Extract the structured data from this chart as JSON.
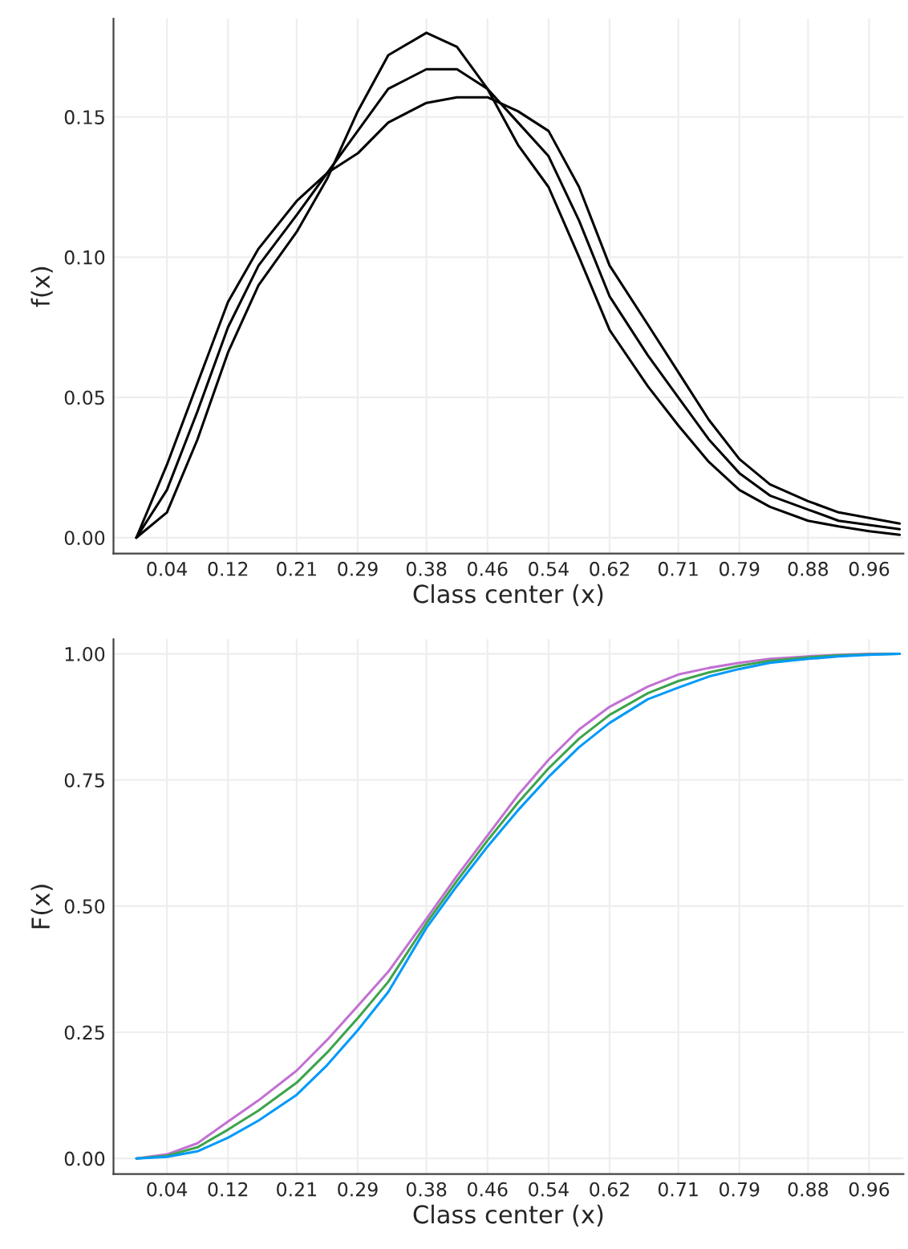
{
  "chart_data": [
    {
      "type": "line",
      "xlabel": "Class center (x)",
      "ylabel": "f(x)",
      "x": [
        0,
        0.04,
        0.08,
        0.12,
        0.16,
        0.21,
        0.25,
        0.29,
        0.33,
        0.38,
        0.42,
        0.46,
        0.5,
        0.54,
        0.58,
        0.62,
        0.67,
        0.71,
        0.75,
        0.79,
        0.83,
        0.88,
        0.92,
        0.96,
        1.0
      ],
      "series": [
        {
          "color": "#000000",
          "values": [
            0,
            0.009,
            0.035,
            0.066,
            0.09,
            0.109,
            0.128,
            0.152,
            0.172,
            0.18,
            0.175,
            0.16,
            0.14,
            0.125,
            0.1,
            0.074,
            0.054,
            0.04,
            0.027,
            0.017,
            0.011,
            0.006,
            0.004,
            0.0023,
            0.001
          ]
        },
        {
          "color": "#000000",
          "values": [
            0,
            0.017,
            0.045,
            0.075,
            0.097,
            0.115,
            0.13,
            0.145,
            0.16,
            0.167,
            0.167,
            0.16,
            0.148,
            0.136,
            0.113,
            0.086,
            0.065,
            0.05,
            0.035,
            0.023,
            0.015,
            0.01,
            0.006,
            0.0045,
            0.003
          ]
        },
        {
          "color": "#000000",
          "values": [
            0,
            0.026,
            0.055,
            0.084,
            0.103,
            0.12,
            0.13,
            0.137,
            0.148,
            0.155,
            0.157,
            0.157,
            0.152,
            0.145,
            0.125,
            0.097,
            0.076,
            0.059,
            0.042,
            0.028,
            0.019,
            0.013,
            0.009,
            0.007,
            0.005
          ]
        }
      ],
      "xlim": [
        -0.03,
        1.005
      ],
      "xticks": [
        0.04,
        0.12,
        0.21,
        0.29,
        0.38,
        0.46,
        0.54,
        0.62,
        0.71,
        0.79,
        0.88,
        0.96
      ],
      "ylim": [
        -0.0057,
        0.185
      ],
      "yticks": [
        {
          "value": 0,
          "label": "0.00"
        },
        {
          "value": 0.05,
          "label": "0.05"
        },
        {
          "value": 0.1,
          "label": "0.10"
        },
        {
          "value": 0.15,
          "label": "0.15"
        }
      ],
      "grid": true,
      "line_style": "solid"
    },
    {
      "type": "line",
      "xlabel": "Class center (x)",
      "ylabel": "F(x)",
      "x": [
        0,
        0.04,
        0.08,
        0.12,
        0.16,
        0.21,
        0.25,
        0.29,
        0.33,
        0.38,
        0.42,
        0.46,
        0.5,
        0.54,
        0.58,
        0.62,
        0.67,
        0.71,
        0.75,
        0.79,
        0.83,
        0.88,
        0.92,
        0.96,
        1.0
      ],
      "series": [
        {
          "color": "#c271d2",
          "values": [
            0,
            0.008,
            0.03,
            0.073,
            0.115,
            0.174,
            0.235,
            0.302,
            0.37,
            0.475,
            0.56,
            0.64,
            0.72,
            0.79,
            0.85,
            0.895,
            0.935,
            0.959,
            0.972,
            0.982,
            0.99,
            0.995,
            0.998,
            1.0,
            1.0
          ]
        },
        {
          "color": "#3da44d",
          "values": [
            0,
            0.005,
            0.022,
            0.057,
            0.095,
            0.15,
            0.21,
            0.278,
            0.35,
            0.466,
            0.55,
            0.63,
            0.705,
            0.773,
            0.832,
            0.879,
            0.922,
            0.946,
            0.963,
            0.976,
            0.986,
            0.993,
            0.997,
            0.999,
            1.0
          ]
        },
        {
          "color": "#009af9",
          "values": [
            0,
            0.003,
            0.014,
            0.041,
            0.075,
            0.126,
            0.185,
            0.254,
            0.33,
            0.457,
            0.54,
            0.618,
            0.69,
            0.756,
            0.815,
            0.863,
            0.91,
            0.933,
            0.955,
            0.97,
            0.982,
            0.99,
            0.995,
            0.998,
            1.0
          ]
        }
      ],
      "xlim": [
        -0.03,
        1.005
      ],
      "xticks": [
        0.04,
        0.12,
        0.21,
        0.29,
        0.38,
        0.46,
        0.54,
        0.62,
        0.71,
        0.79,
        0.88,
        0.96
      ],
      "ylim": [
        -0.031,
        1.029
      ],
      "yticks": [
        {
          "value": 0,
          "label": "0.00"
        },
        {
          "value": 0.25,
          "label": "0.25"
        },
        {
          "value": 0.5,
          "label": "0.50"
        },
        {
          "value": 0.75,
          "label": "0.75"
        },
        {
          "value": 1,
          "label": "1.00"
        }
      ],
      "grid": true,
      "line_style": "solid"
    }
  ]
}
